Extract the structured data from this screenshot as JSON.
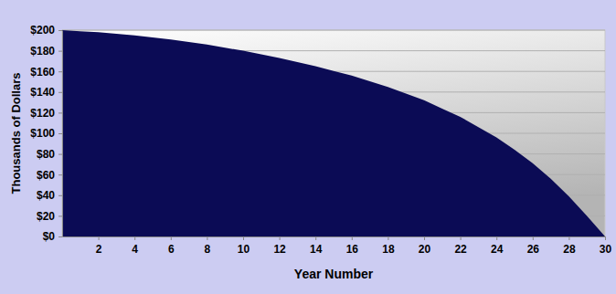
{
  "chart_data": {
    "type": "area",
    "x_label": "Year Number",
    "y_label": "Thousands of Dollars",
    "x": [
      0,
      1,
      2,
      3,
      4,
      5,
      6,
      7,
      8,
      9,
      10,
      11,
      12,
      13,
      14,
      15,
      16,
      17,
      18,
      19,
      20,
      21,
      22,
      23,
      24,
      25,
      26,
      27,
      28,
      29,
      30
    ],
    "values": [
      200,
      199,
      198,
      196.5,
      195,
      193,
      191,
      188.5,
      186,
      183,
      180,
      176.5,
      173,
      169,
      165,
      160.5,
      156,
      150.5,
      145,
      138.5,
      132,
      124,
      116,
      106,
      96,
      84,
      71,
      56,
      39,
      20,
      0
    ],
    "color": "#0b0b55",
    "xlim": [
      0,
      30
    ],
    "xticks": [
      2,
      4,
      6,
      8,
      10,
      12,
      14,
      16,
      18,
      20,
      22,
      24,
      26,
      28,
      30
    ],
    "ylim": [
      0,
      200
    ],
    "yticks": [
      {
        "value": 0,
        "label": "$0"
      },
      {
        "value": 20,
        "label": "$20"
      },
      {
        "value": 40,
        "label": "$40"
      },
      {
        "value": 60,
        "label": "$60"
      },
      {
        "value": 80,
        "label": "$80"
      },
      {
        "value": 100,
        "label": "$100"
      },
      {
        "value": 120,
        "label": "$120"
      },
      {
        "value": 140,
        "label": "$140"
      },
      {
        "value": 160,
        "label": "$160"
      },
      {
        "value": 180,
        "label": "$180"
      },
      {
        "value": 200,
        "label": "$200"
      }
    ],
    "grid": true
  }
}
